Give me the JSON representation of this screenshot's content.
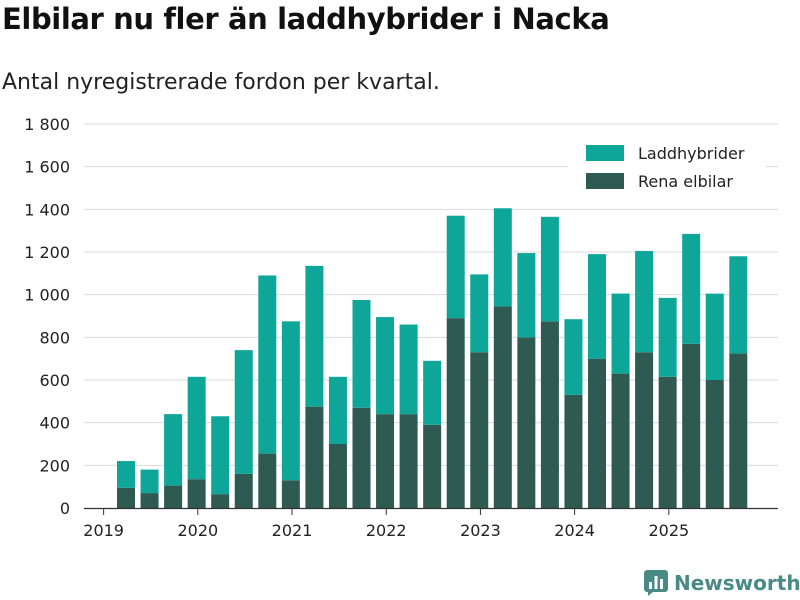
{
  "header": {
    "title": "Elbilar nu fler än laddhybrider i Nacka",
    "subtitle": "Antal nyregistrerade fordon per kvartal."
  },
  "brand": {
    "name": "Newsworthy",
    "icon": "bar-chart-logo-icon"
  },
  "colors": {
    "laddhybrider": "#0fa69a",
    "elbilar": "#2f5a52",
    "grid": "#d9d9d9",
    "axis": "#333333"
  },
  "chart_data": {
    "type": "bar",
    "stacked": true,
    "categories": [
      "2019 Q2",
      "2019 Q3",
      "2019 Q4",
      "2020 Q1",
      "2020 Q2",
      "2020 Q3",
      "2020 Q4",
      "2021 Q1",
      "2021 Q2",
      "2021 Q3",
      "2021 Q4",
      "2022 Q1",
      "2022 Q2",
      "2022 Q3",
      "2022 Q4",
      "2023 Q1",
      "2023 Q2",
      "2023 Q3",
      "2023 Q4",
      "2024 Q1",
      "2024 Q2",
      "2024 Q3",
      "2024 Q4",
      "2025 Q1",
      "2025 Q2",
      "2025 Q3",
      "2025 Q4"
    ],
    "series": [
      {
        "name": "Rena elbilar",
        "values": [
          95,
          70,
          105,
          135,
          65,
          160,
          255,
          130,
          475,
          300,
          470,
          440,
          440,
          390,
          890,
          730,
          945,
          800,
          875,
          530,
          700,
          630,
          730,
          615,
          770,
          600,
          725
        ]
      },
      {
        "name": "Laddhybrider",
        "values": [
          125,
          110,
          335,
          480,
          365,
          580,
          835,
          745,
          660,
          315,
          505,
          455,
          420,
          300,
          480,
          365,
          460,
          395,
          490,
          355,
          490,
          375,
          475,
          370,
          515,
          405,
          455
        ]
      }
    ],
    "ylim": [
      0,
      1800
    ],
    "yticks": [
      0,
      200,
      400,
      600,
      800,
      1000,
      1200,
      1400,
      1600,
      1800
    ],
    "ytick_labels": [
      "0",
      "200",
      "400",
      "600",
      "800",
      "1 000",
      "1 200",
      "1 400",
      "1 600",
      "1 800"
    ],
    "xtick_labels": [
      {
        "label": "2019",
        "at": 0
      },
      {
        "label": "2020",
        "at": 4
      },
      {
        "label": "2021",
        "at": 8
      },
      {
        "label": "2022",
        "at": 12
      },
      {
        "label": "2023",
        "at": 16
      },
      {
        "label": "2024",
        "at": 20
      },
      {
        "label": "2025",
        "at": 24
      }
    ],
    "legend": {
      "position": "top-right",
      "entries": [
        "Laddhybrider",
        "Rena elbilar"
      ]
    },
    "grid": true,
    "xlabel": "",
    "ylabel": ""
  }
}
